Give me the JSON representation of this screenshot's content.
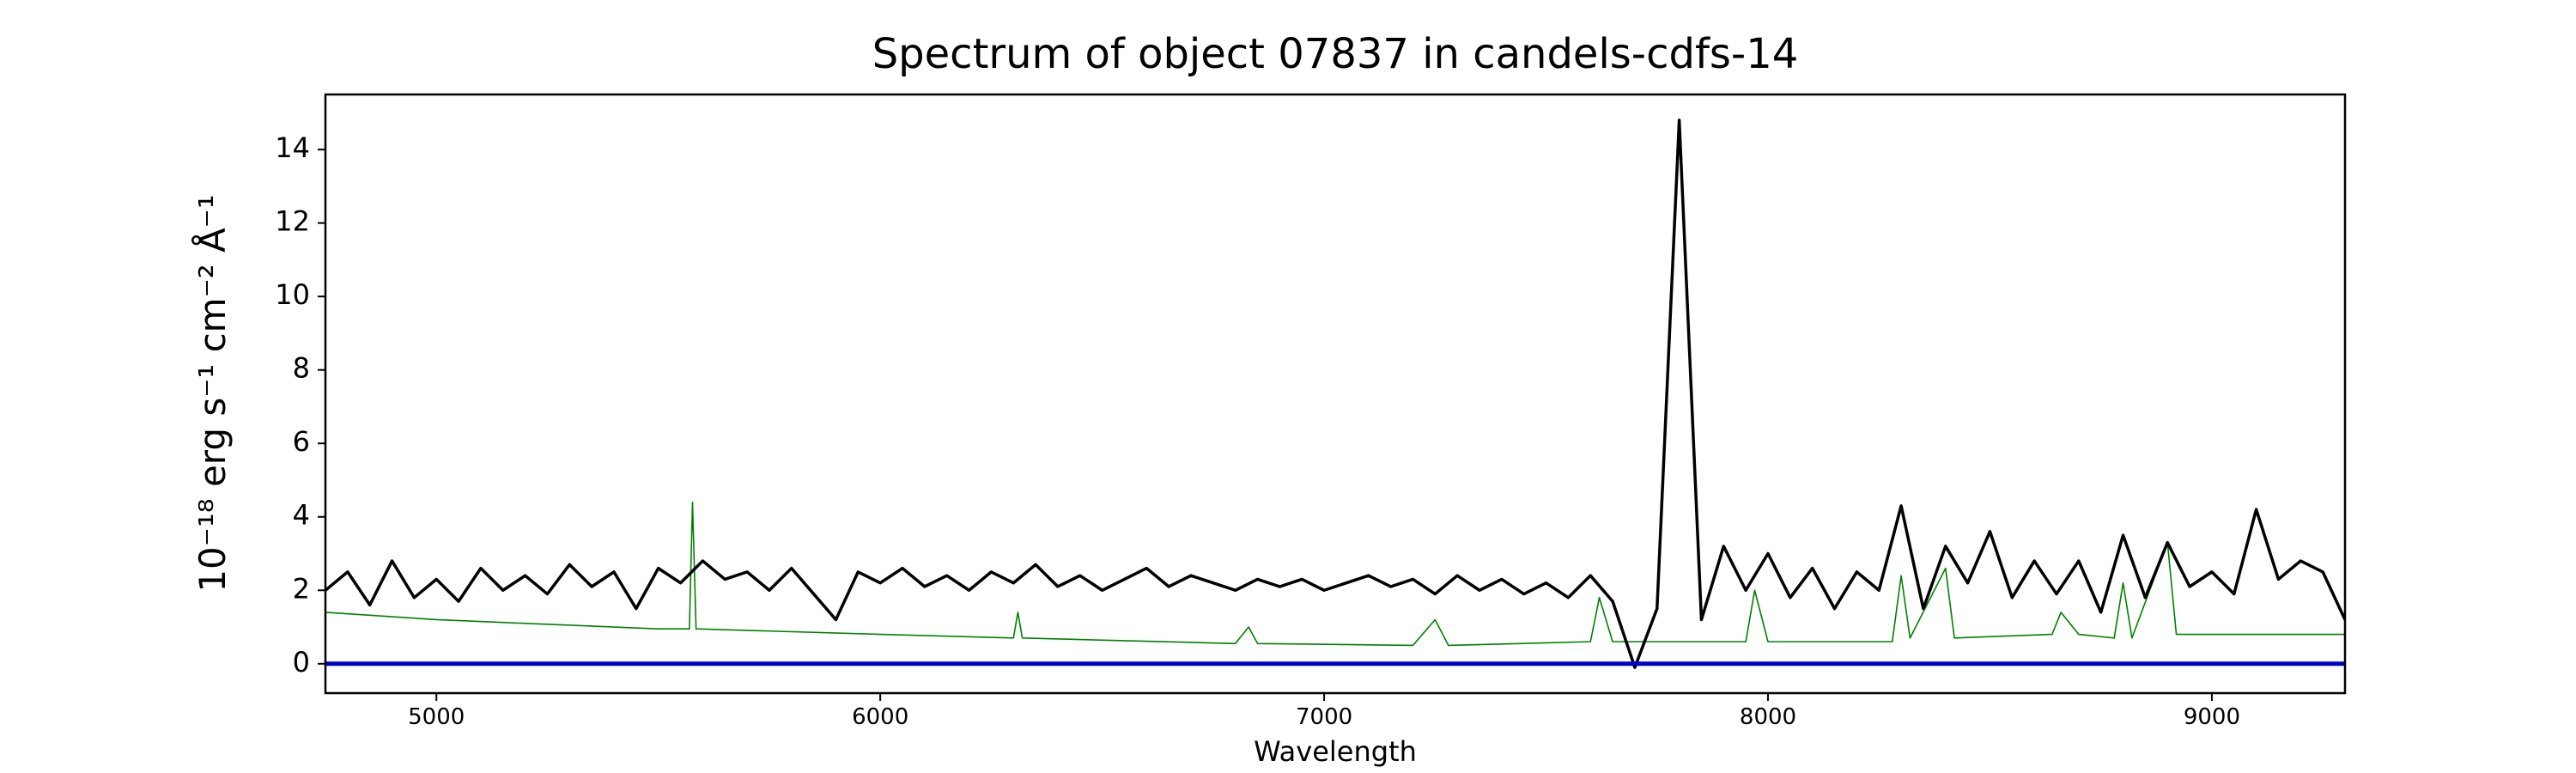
{
  "chart_data": {
    "type": "line",
    "title": "Spectrum of object 07837 in candels-cdfs-14",
    "xlabel": "Wavelength",
    "ylabel": "10⁻¹⁸ erg s⁻¹ cm⁻² Å⁻¹",
    "xlim": [
      4750,
      9300
    ],
    "ylim": [
      -0.8,
      15.5
    ],
    "xticks": [
      5000,
      6000,
      7000,
      8000,
      9000
    ],
    "yticks": [
      0,
      2,
      4,
      6,
      8,
      10,
      12,
      14
    ],
    "series": [
      {
        "color": "#008000",
        "width": 1.6,
        "x": [
          4750,
          5000,
          5500,
          5570,
          5577,
          5585,
          6000,
          6300,
          6310,
          6320,
          6800,
          6830,
          6850,
          7200,
          7250,
          7280,
          7600,
          7620,
          7650,
          7950,
          7970,
          8000,
          8280,
          8300,
          8320,
          8400,
          8420,
          8640,
          8660,
          8700,
          8780,
          8800,
          8820,
          8900,
          8920,
          9300
        ],
        "values": [
          1.4,
          1.2,
          0.95,
          0.95,
          4.4,
          0.95,
          0.8,
          0.7,
          1.4,
          0.7,
          0.55,
          1.0,
          0.55,
          0.5,
          1.2,
          0.5,
          0.6,
          1.8,
          0.6,
          0.6,
          2.0,
          0.6,
          0.6,
          2.4,
          0.7,
          2.6,
          0.7,
          0.8,
          1.4,
          0.8,
          0.7,
          2.2,
          0.7,
          3.3,
          0.8,
          0.8
        ]
      },
      {
        "color": "#000000",
        "width": 3.5,
        "x": [
          4750,
          4800,
          4850,
          4900,
          4950,
          5000,
          5050,
          5100,
          5150,
          5200,
          5250,
          5300,
          5350,
          5400,
          5450,
          5500,
          5550,
          5600,
          5650,
          5700,
          5750,
          5800,
          5850,
          5900,
          5950,
          6000,
          6050,
          6100,
          6150,
          6200,
          6250,
          6300,
          6350,
          6400,
          6450,
          6500,
          6550,
          6600,
          6650,
          6700,
          6750,
          6800,
          6850,
          6900,
          6950,
          7000,
          7050,
          7100,
          7150,
          7200,
          7250,
          7300,
          7350,
          7400,
          7450,
          7500,
          7550,
          7600,
          7650,
          7700,
          7750,
          7800,
          7850,
          7900,
          7950,
          8000,
          8050,
          8100,
          8150,
          8200,
          8250,
          8300,
          8350,
          8400,
          8450,
          8500,
          8550,
          8600,
          8650,
          8700,
          8750,
          8800,
          8850,
          8900,
          8950,
          9000,
          9050,
          9100,
          9150,
          9200,
          9250,
          9300
        ],
        "values": [
          2.0,
          2.5,
          1.6,
          2.8,
          1.8,
          2.3,
          1.7,
          2.6,
          2.0,
          2.4,
          1.9,
          2.7,
          2.1,
          2.5,
          1.5,
          2.6,
          2.2,
          2.8,
          2.3,
          2.5,
          2.0,
          2.6,
          1.9,
          1.2,
          2.5,
          2.2,
          2.6,
          2.1,
          2.4,
          2.0,
          2.5,
          2.2,
          2.7,
          2.1,
          2.4,
          2.0,
          2.3,
          2.6,
          2.1,
          2.4,
          2.2,
          2.0,
          2.3,
          2.1,
          2.3,
          2.0,
          2.2,
          2.4,
          2.1,
          2.3,
          1.9,
          2.4,
          2.0,
          2.3,
          1.9,
          2.2,
          1.8,
          2.4,
          1.7,
          -0.1,
          1.5,
          14.8,
          1.2,
          3.2,
          2.0,
          3.0,
          1.8,
          2.6,
          1.5,
          2.5,
          2.0,
          4.3,
          1.5,
          3.2,
          2.2,
          3.6,
          1.8,
          2.8,
          1.9,
          2.8,
          1.4,
          3.5,
          1.8,
          3.3,
          2.1,
          2.5,
          1.9,
          4.2,
          2.3,
          2.8,
          2.5,
          1.2
        ]
      },
      {
        "color": "#0000cc",
        "width": 5,
        "x": [
          4750,
          9300
        ],
        "values": [
          0,
          0
        ]
      }
    ]
  }
}
